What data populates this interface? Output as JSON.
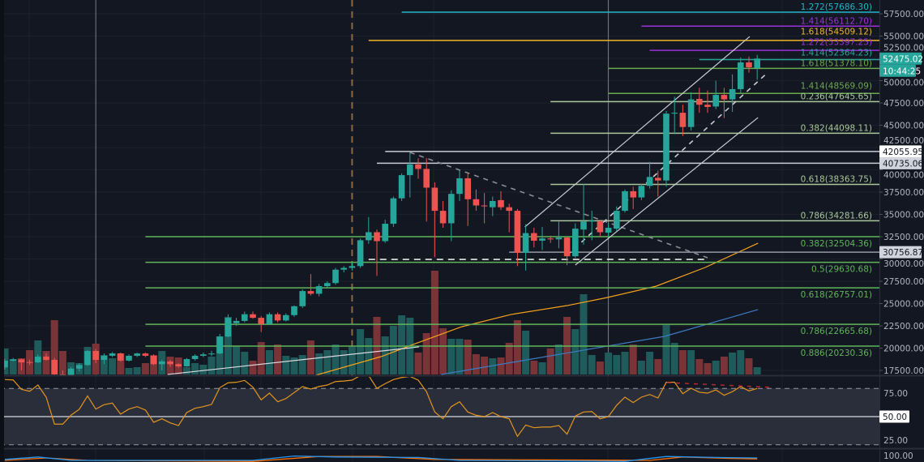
{
  "chart_data": {
    "type": "candlestick",
    "title": "",
    "price_axis": {
      "ticks": [
        57500,
        55000,
        52500,
        50000,
        47500,
        45000,
        42500,
        40000,
        37500,
        35000,
        32500,
        30000,
        27500,
        25000,
        22500,
        20000,
        17500
      ],
      "ylim": [
        17000,
        59000
      ]
    },
    "candles_ohlc": [
      [
        17840,
        18800,
        17600,
        18590
      ],
      [
        18590,
        18900,
        18500,
        18740
      ],
      [
        18740,
        18800,
        17500,
        18400
      ],
      [
        18440,
        18700,
        18100,
        18400
      ],
      [
        18400,
        19300,
        18300,
        19050
      ],
      [
        19050,
        19400,
        18600,
        18680
      ],
      [
        18680,
        18900,
        17000,
        17050
      ],
      [
        17050,
        17500,
        16900,
        17000
      ],
      [
        17000,
        17900,
        16900,
        17700
      ],
      [
        17700,
        18300,
        17400,
        18100
      ],
      [
        18100,
        19800,
        18000,
        19680
      ],
      [
        19680,
        19900,
        18300,
        18680
      ],
      [
        18680,
        19400,
        18200,
        19140
      ],
      [
        19140,
        19550,
        19000,
        19410
      ],
      [
        19410,
        19500,
        18500,
        18600
      ],
      [
        18600,
        19300,
        18500,
        19140
      ],
      [
        19140,
        19500,
        19000,
        19400
      ],
      [
        19400,
        19500,
        19000,
        19140
      ],
      [
        19140,
        19300,
        18100,
        18200
      ],
      [
        18200,
        18700,
        17500,
        18500
      ],
      [
        18500,
        18700,
        17900,
        18200
      ],
      [
        18200,
        18300,
        17800,
        17950
      ],
      [
        17950,
        18900,
        17900,
        18770
      ],
      [
        18770,
        19300,
        18600,
        19140
      ],
      [
        19140,
        19500,
        19000,
        19300
      ],
      [
        19300,
        19700,
        19100,
        19400
      ],
      [
        19400,
        21600,
        19300,
        21300
      ],
      [
        21300,
        23800,
        21200,
        23400
      ],
      [
        22800,
        23400,
        22500,
        23050
      ],
      [
        23050,
        24100,
        22900,
        23800
      ],
      [
        23800,
        24100,
        23300,
        23400
      ],
      [
        23400,
        23600,
        21800,
        22700
      ],
      [
        22700,
        24000,
        22600,
        23800
      ],
      [
        23800,
        24000,
        22900,
        23100
      ],
      [
        23100,
        23900,
        23000,
        23700
      ],
      [
        23700,
        24800,
        23500,
        24700
      ],
      [
        24700,
        26600,
        24500,
        26400
      ],
      [
        26400,
        28300,
        25900,
        26100
      ],
      [
        26100,
        27200,
        25800,
        26950
      ],
      [
        26950,
        27500,
        26700,
        27300
      ],
      [
        27300,
        29000,
        27100,
        28800
      ],
      [
        28800,
        29200,
        28500,
        29000
      ],
      [
        29000,
        29600,
        28700,
        29200
      ],
      [
        29200,
        32300,
        29000,
        32100
      ],
      [
        32100,
        34700,
        31700,
        33000
      ],
      [
        33000,
        33300,
        28100,
        32000
      ],
      [
        32000,
        34400,
        31800,
        33950
      ],
      [
        33950,
        37000,
        33600,
        36800
      ],
      [
        36800,
        39600,
        36500,
        39400
      ],
      [
        39400,
        41950,
        36900,
        40600
      ],
      [
        40600,
        41300,
        39000,
        40100
      ],
      [
        40100,
        41300,
        34200,
        38000
      ],
      [
        38000,
        38600,
        30200,
        35400
      ],
      [
        35400,
        36500,
        33500,
        34000
      ],
      [
        34000,
        37700,
        32000,
        37300
      ],
      [
        37300,
        40000,
        36500,
        39050
      ],
      [
        39050,
        39700,
        33700,
        36700
      ],
      [
        36700,
        37800,
        35400,
        36000
      ],
      [
        36000,
        37400,
        34000,
        35900
      ],
      [
        35800,
        37000,
        34800,
        36500
      ],
      [
        36600,
        37600,
        35500,
        35800
      ],
      [
        35800,
        36200,
        33000,
        35400
      ],
      [
        35400,
        35600,
        29200,
        30700
      ],
      [
        30700,
        33900,
        28700,
        32900
      ],
      [
        32900,
        33500,
        31300,
        32050
      ],
      [
        32050,
        33600,
        31000,
        32300
      ],
      [
        32300,
        32600,
        31800,
        32200
      ],
      [
        32200,
        34200,
        31200,
        32400
      ],
      [
        32400,
        32500,
        29300,
        30300
      ],
      [
        30300,
        34000,
        30100,
        33400
      ],
      [
        33300,
        38400,
        31600,
        34200
      ],
      [
        34200,
        35400,
        32100,
        34300
      ],
      [
        34200,
        34400,
        32600,
        33000
      ],
      [
        32950,
        34000,
        32500,
        33500
      ],
      [
        33400,
        35900,
        33100,
        35400
      ],
      [
        35400,
        37800,
        35200,
        37600
      ],
      [
        37600,
        38100,
        35600,
        36900
      ],
      [
        36900,
        38400,
        36600,
        38200
      ],
      [
        38200,
        40900,
        37900,
        39200
      ],
      [
        39100,
        39900,
        37000,
        38800
      ],
      [
        38800,
        46600,
        38100,
        46300
      ],
      [
        46300,
        48200,
        44000,
        46400
      ],
      [
        46400,
        47300,
        43800,
        44800
      ],
      [
        44800,
        48700,
        44400,
        47900
      ],
      [
        47950,
        49200,
        46400,
        47300
      ],
      [
        47300,
        48900,
        46400,
        47050
      ],
      [
        47100,
        50000,
        46800,
        48400
      ],
      [
        48400,
        49200,
        45800,
        47900
      ],
      [
        47900,
        50700,
        46500,
        49050
      ],
      [
        49050,
        52600,
        48600,
        52050
      ],
      [
        52050,
        52700,
        50900,
        51500
      ],
      [
        51400,
        52900,
        50100,
        52475
      ]
    ],
    "volume_relative": [
      32,
      19,
      20,
      30,
      42,
      29,
      67,
      29,
      15,
      14,
      34,
      38,
      24,
      20,
      26,
      8,
      9,
      14,
      24,
      29,
      22,
      21,
      9,
      14,
      12,
      22,
      47,
      71,
      35,
      28,
      17,
      40,
      30,
      37,
      23,
      21,
      24,
      42,
      26,
      30,
      37,
      30,
      34,
      56,
      45,
      71,
      47,
      60,
      73,
      70,
      27,
      51,
      128,
      57,
      44,
      44,
      43,
      25,
      22,
      20,
      21,
      39,
      67,
      54,
      17,
      15,
      32,
      37,
      71,
      56,
      99,
      24,
      16,
      27,
      24,
      28,
      37,
      17,
      28,
      19,
      61,
      39,
      30,
      30,
      19,
      14,
      17,
      22,
      27,
      30,
      20,
      9
    ],
    "moving_averages": [
      {
        "name": "MA50",
        "color": "#f7a21b",
        "points": [
          [
            37.6,
            16955
          ],
          [
            45.5,
            19045
          ],
          [
            49.4,
            20410
          ],
          [
            55.3,
            22410
          ],
          [
            61.2,
            23770
          ],
          [
            68,
            24770
          ],
          [
            72.9,
            25680
          ],
          [
            78.8,
            26955
          ],
          [
            84.7,
            29045
          ],
          [
            91.1,
            31770
          ]
        ]
      },
      {
        "name": "MA200",
        "color": "#3d7bc4",
        "points": [
          [
            52.8,
            17045
          ],
          [
            62,
            18500
          ],
          [
            72.9,
            20230
          ],
          [
            79.8,
            21320
          ],
          [
            91.1,
            24320
          ]
        ]
      }
    ],
    "fib_levels": [
      {
        "label": "1.272(57686.30)",
        "price": 57686.3,
        "from": 48,
        "color": "#22b5c9",
        "side": "above"
      },
      {
        "label": "1.414(56112.70)",
        "price": 56112.7,
        "from": 77,
        "color": "#9b30d9",
        "side": "above"
      },
      {
        "label": "1.618(54509.12)",
        "price": 54509.12,
        "from": 44,
        "color": "#f0b429",
        "side": "above"
      },
      {
        "label": "1.272(53397.25)",
        "price": 53397.25,
        "from": 78,
        "color": "#9b30d9",
        "side": "above"
      },
      {
        "label": "1.414(52364.23)",
        "price": 52364.23,
        "from": 84,
        "color": "#26a69a",
        "side": "above"
      },
      {
        "label": "1.618(51378.10)",
        "price": 51378.1,
        "from": 73,
        "color": "#6aa84f",
        "side": "above"
      },
      {
        "label": "1.414(48569.09)",
        "price": 48569.09,
        "from": 73,
        "color": "#6aa84f",
        "side": "above"
      },
      {
        "label": "0.236(47645.65)",
        "price": 47645.65,
        "from": 66,
        "color": "#a9c79b",
        "side": "above"
      },
      {
        "label": "0.382(44098.11)",
        "price": 44098.11,
        "from": 66,
        "color": "#a9c79b",
        "side": "above"
      },
      {
        "label": "0.618(38363.75)",
        "price": 38363.75,
        "from": 66,
        "color": "#a9c79b",
        "side": "above"
      },
      {
        "label": "0.786(34281.66)",
        "price": 34281.66,
        "from": 66,
        "color": "#a9c79b",
        "side": "above"
      },
      {
        "label": "0.382(32504.36)",
        "price": 32504.36,
        "from": 17,
        "color": "#5fb55a",
        "side": "below"
      },
      {
        "label": "0.5(29630.68)",
        "price": 29630.68,
        "from": 17,
        "color": "#5fb55a",
        "side": "below"
      },
      {
        "label": "0.618(26757.01)",
        "price": 26757.01,
        "from": 17,
        "color": "#5fb55a",
        "side": "below"
      },
      {
        "label": "0.786(22665.68)",
        "price": 22665.68,
        "from": 17,
        "color": "#5fb55a",
        "side": "below"
      },
      {
        "label": "0.886(20230.36)",
        "price": 20230.36,
        "from": 17,
        "color": "#5fb55a",
        "side": "below"
      }
    ],
    "horizontal_lines": [
      {
        "label": "42055.95",
        "price": 42055.95,
        "from": 46,
        "color": "#c9ccd4",
        "box_bg": "#ffffff",
        "box_fg": "#131722"
      },
      {
        "label": "40735.06",
        "price": 40735.06,
        "from": 45,
        "color": "#c9ccd4",
        "box_bg": "#d1d4dc",
        "box_fg": "#131722"
      },
      {
        "label": "30756.87",
        "price": 30756.87,
        "from": 61,
        "color": "#9598a1",
        "box_bg": "#d1d4dc",
        "box_fg": "#131722"
      }
    ],
    "trend_lines": [
      {
        "name": "descending-resistance",
        "from": [
          49,
          41950
        ],
        "to": [
          85,
          30136
        ],
        "style": "dashed",
        "color": "#8a8d96"
      },
      {
        "name": "support-dashed",
        "from": [
          44,
          29950
        ],
        "to": [
          85,
          29950
        ],
        "style": "dashed",
        "color": "#e6e6e6"
      },
      {
        "name": "channel-upper",
        "from": [
          62.9,
          33590
        ],
        "to": [
          90.1,
          54950
        ],
        "style": "solid",
        "color": "#c9ccd4"
      },
      {
        "name": "channel-middle",
        "from": [
          68,
          30410
        ],
        "to": [
          92,
          50680
        ],
        "style": "dashed",
        "color": "#c9ccd4"
      },
      {
        "name": "channel-lower",
        "from": [
          69,
          29320
        ],
        "to": [
          91.1,
          45860
        ],
        "style": "solid",
        "color": "#c9ccd4"
      },
      {
        "name": "base-trendline",
        "from": [
          19.7,
          17050
        ],
        "to": [
          50.1,
          20140
        ],
        "style": "solid",
        "color": "#d9dadf"
      }
    ],
    "vertical_lines": [
      {
        "index": 11,
        "style": "solid",
        "color": "#787b86"
      },
      {
        "index": 42,
        "style": "dashed",
        "color": "#8a6a3c"
      },
      {
        "index": 73,
        "style": "solid",
        "color": "#787b86"
      }
    ],
    "last_price": {
      "label": "52475.02",
      "price": 52475.02,
      "color": "#26a69a"
    },
    "countdown": "10:44:25",
    "rsi": {
      "ticks": [
        "75.00",
        "50.00",
        "25.00"
      ],
      "mid_label": "50.00",
      "upper_band": 80,
      "lower_band": 20,
      "values": [
        89.4,
        89,
        79,
        77,
        83.6,
        70.7,
        42,
        42,
        51.5,
        57.8,
        72,
        58,
        62.7,
        64.4,
        52.6,
        58,
        60.6,
        57,
        44,
        47.7,
        43.4,
        40.5,
        54.3,
        58.9,
        60.6,
        63,
        80.8,
        86,
        86.5,
        88.5,
        81.3,
        67.8,
        75,
        65.8,
        69.2,
        75.6,
        82,
        79.3,
        82,
        83.6,
        87.3,
        87.8,
        88.8,
        93.7,
        93.7,
        80,
        85,
        89.4,
        91.6,
        92.8,
        88.8,
        76.5,
        54.9,
        47.7,
        60.6,
        65.8,
        54.9,
        51.4,
        50,
        54.3,
        50,
        47.7,
        29,
        41,
        38.2,
        38.9,
        38.9,
        40.5,
        31.3,
        50.6,
        54.9,
        55.4,
        47.7,
        50,
        62,
        70.7,
        65,
        70.7,
        73.5,
        69.8,
        86.5,
        86.5,
        74.4,
        80.2,
        75.9,
        75,
        78.4,
        72.7,
        76.5,
        82,
        77.3,
        80
      ],
      "divergence": {
        "from": [
          80.1,
          86.2
        ],
        "to": [
          93,
          81
        ],
        "color": "#b22833"
      }
    },
    "lower_pane": {
      "label": "100.00",
      "k": [
        [
          0,
          92
        ],
        [
          4,
          97
        ],
        [
          8,
          90
        ],
        [
          30,
          90
        ],
        [
          35,
          99
        ],
        [
          40,
          97
        ],
        [
          50,
          96
        ],
        [
          55,
          90
        ],
        [
          75,
          88
        ],
        [
          80,
          98
        ],
        [
          86,
          96
        ],
        [
          91,
          95
        ]
      ],
      "d": [
        [
          0,
          90
        ],
        [
          5,
          95
        ],
        [
          10,
          90
        ],
        [
          30,
          88
        ],
        [
          38,
          98
        ],
        [
          45,
          98
        ],
        [
          52,
          92
        ],
        [
          78,
          90
        ],
        [
          82,
          97
        ],
        [
          88,
          94
        ],
        [
          91,
          93
        ]
      ]
    }
  }
}
